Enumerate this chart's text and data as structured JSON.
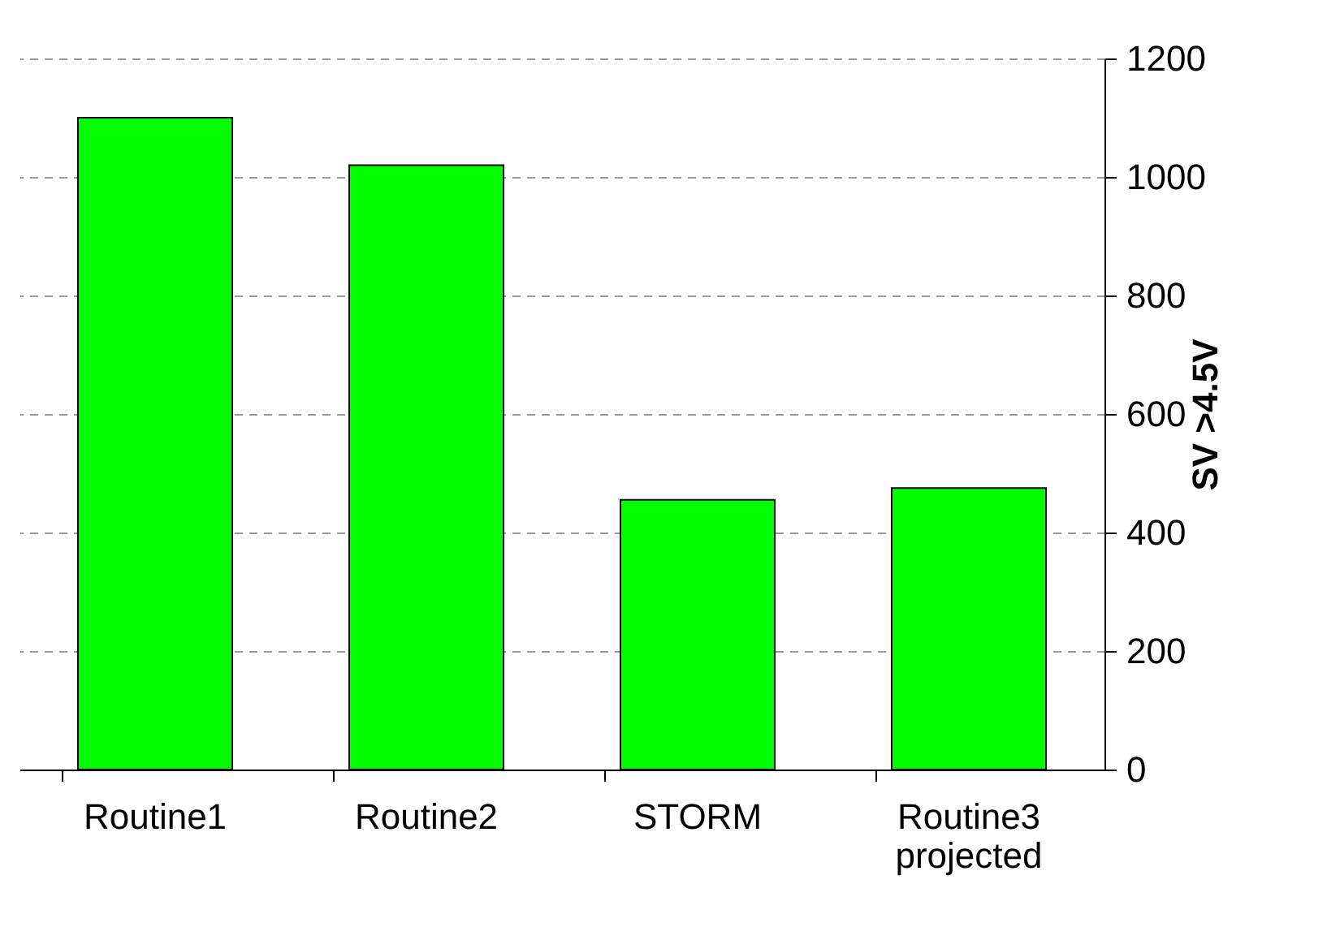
{
  "chart_data": {
    "type": "bar",
    "categories": [
      "Routine1",
      "Routine2",
      "STORM",
      "Routine3 projected"
    ],
    "values": [
      1100,
      1020,
      455,
      475
    ],
    "color": "#00ff00",
    "ylabel": "SV >4.5V",
    "ylim": [
      0,
      1200
    ],
    "yticks": [
      0,
      200,
      400,
      600,
      800,
      1000,
      1200
    ],
    "grid": "y"
  }
}
